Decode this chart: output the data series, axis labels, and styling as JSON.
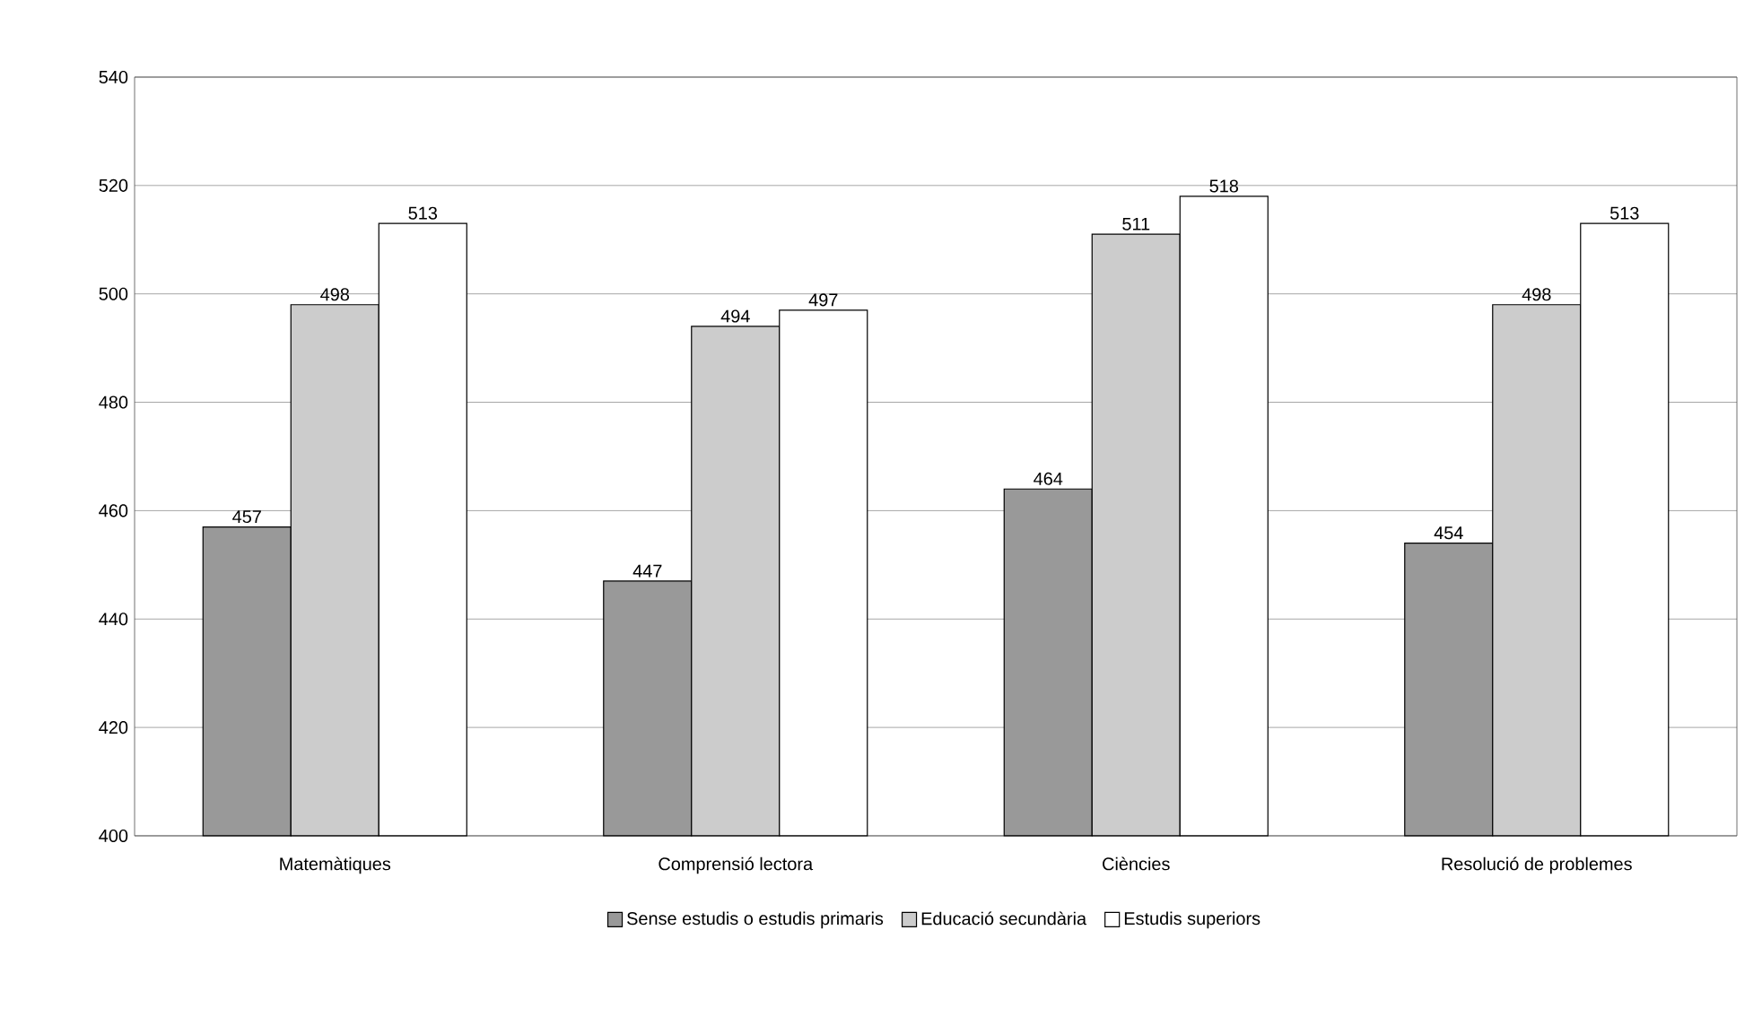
{
  "chart_data": {
    "type": "bar",
    "categories": [
      "Matemàtiques",
      "Comprensió lectora",
      "Ciències",
      "Resolució de problemes"
    ],
    "series": [
      {
        "name": "Sense estudis o estudis primaris",
        "color": "#999999",
        "values": [
          457,
          447,
          464,
          454
        ]
      },
      {
        "name": "Educació secundària",
        "color": "#cccccc",
        "values": [
          498,
          494,
          511,
          498
        ]
      },
      {
        "name": "Estudis superiors",
        "color": "#ffffff",
        "values": [
          513,
          497,
          518,
          513
        ]
      }
    ],
    "ylim": [
      400,
      540
    ],
    "yticks": [
      400,
      420,
      440,
      460,
      480,
      500,
      520,
      540
    ],
    "grid": "y",
    "legend": "bottom",
    "data_labels": true
  }
}
